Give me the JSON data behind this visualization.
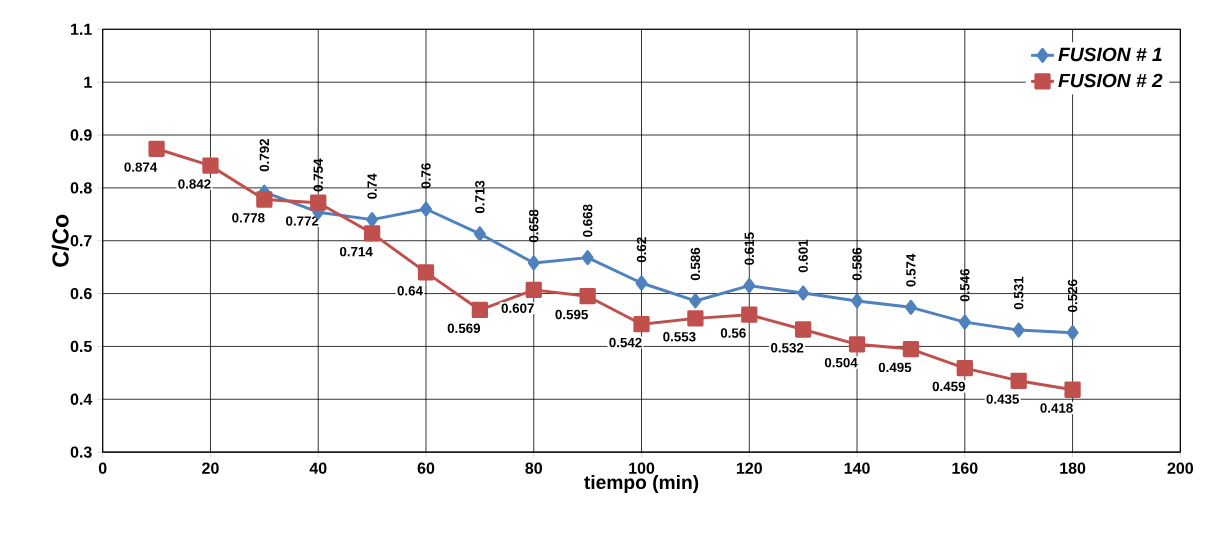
{
  "chart_data": {
    "type": "line",
    "xlabel": "tiempo (min)",
    "ylabel": "C/Co",
    "xlim": [
      0,
      200
    ],
    "ylim": [
      0.3,
      1.1
    ],
    "xticks": [
      0,
      20,
      40,
      60,
      80,
      100,
      120,
      140,
      160,
      180,
      200
    ],
    "yticks": [
      0.3,
      0.4,
      0.5,
      0.6,
      0.7,
      0.8,
      0.9,
      1,
      1.1
    ],
    "grid": true,
    "legend": "top right",
    "line_style": "solid",
    "series": [
      {
        "name": "FUSION # 1",
        "color": "#4f81bd",
        "marker": "diamond",
        "x": [
          30,
          40,
          50,
          60,
          70,
          80,
          90,
          100,
          110,
          120,
          130,
          140,
          150,
          160,
          170,
          180
        ],
        "values": [
          0.792,
          0.754,
          0.74,
          0.76,
          0.713,
          0.658,
          0.668,
          0.62,
          0.586,
          0.615,
          0.601,
          0.586,
          0.574,
          0.546,
          0.531,
          0.526
        ],
        "value_labels": [
          "0.792",
          "0.754",
          "0.74",
          "0.76",
          "0.713",
          "0.658",
          "0.668",
          "0.62",
          "0.586",
          "0.615",
          "0.601",
          "0.586",
          "0.574",
          "0.546",
          "0.531",
          "0.526"
        ]
      },
      {
        "name": "FUSION # 2",
        "color": "#c0504d",
        "marker": "square",
        "x": [
          10,
          20,
          30,
          40,
          50,
          60,
          70,
          80,
          90,
          100,
          110,
          120,
          130,
          140,
          150,
          160,
          170,
          180
        ],
        "values": [
          0.874,
          0.842,
          0.778,
          0.772,
          0.714,
          0.64,
          0.569,
          0.607,
          0.595,
          0.542,
          0.553,
          0.56,
          0.532,
          0.504,
          0.495,
          0.459,
          0.435,
          0.418
        ],
        "value_labels": [
          "0.874",
          "0.842",
          "0.778",
          "0.772",
          "0.714",
          "0.64",
          "0.569",
          "0.607",
          "0.595",
          "0.542",
          "0.553",
          "0.56",
          "0.532",
          "0.504",
          "0.495",
          "0.459",
          "0.435",
          "0.418"
        ]
      }
    ]
  }
}
